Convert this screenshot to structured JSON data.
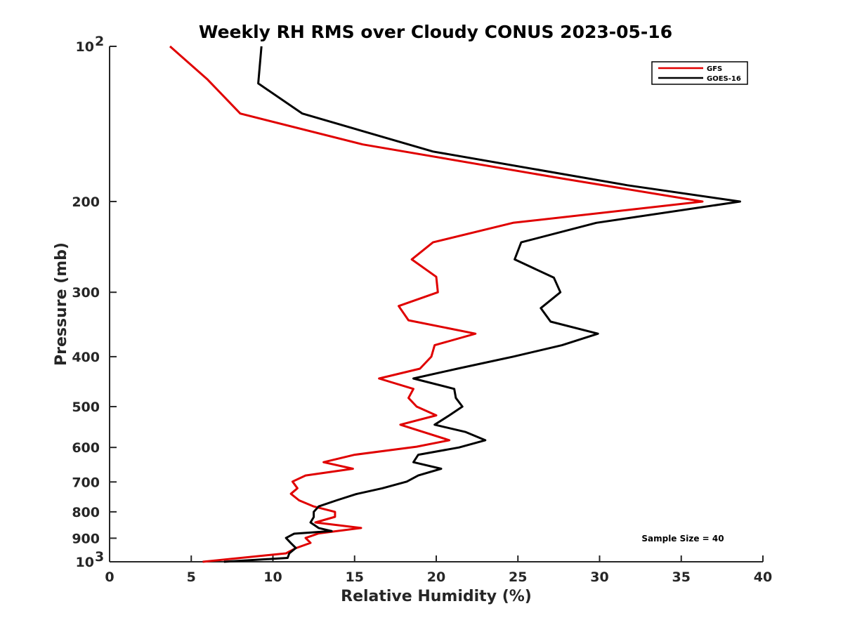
{
  "chart_data": {
    "type": "line",
    "title": "Weekly RH RMS over Cloudy CONUS 2023-05-16",
    "xlabel": "Relative Humidity (%)",
    "ylabel": "Pressure (mb)",
    "xlim": [
      0,
      40
    ],
    "ylim": [
      100,
      1000
    ],
    "y_scale": "log",
    "y_reversed": true,
    "x_ticks": [
      "0",
      "5",
      "10",
      "15",
      "20",
      "25",
      "30",
      "35",
      "40"
    ],
    "y_ticks": [
      {
        "value": 100,
        "base": "10",
        "exp": "2"
      },
      {
        "value": 200,
        "label": "200"
      },
      {
        "value": 300,
        "label": "300"
      },
      {
        "value": 400,
        "label": "400"
      },
      {
        "value": 500,
        "label": "500"
      },
      {
        "value": 600,
        "label": "600"
      },
      {
        "value": 700,
        "label": "700"
      },
      {
        "value": 800,
        "label": "800"
      },
      {
        "value": 900,
        "label": "900"
      },
      {
        "value": 1000,
        "base": "10",
        "exp": "3"
      }
    ],
    "legend_position": "top-right",
    "annotation": "Sample Size = 40",
    "series": [
      {
        "name": "GFS",
        "color": "#e00000",
        "points": [
          [
            3.7,
            100
          ],
          [
            6.0,
            116
          ],
          [
            8.0,
            135
          ],
          [
            15.5,
            155
          ],
          [
            27.5,
            180
          ],
          [
            36.3,
            200
          ],
          [
            24.7,
            220
          ],
          [
            19.8,
            240
          ],
          [
            18.5,
            259
          ],
          [
            20.0,
            280
          ],
          [
            20.1,
            300
          ],
          [
            17.7,
            319
          ],
          [
            18.3,
            340
          ],
          [
            22.4,
            361
          ],
          [
            19.9,
            380
          ],
          [
            19.7,
            400
          ],
          [
            19.0,
            422
          ],
          [
            16.5,
            441
          ],
          [
            18.6,
            462
          ],
          [
            18.3,
            481
          ],
          [
            18.8,
            500
          ],
          [
            20.0,
            520
          ],
          [
            17.8,
            542
          ],
          [
            20.8,
            581
          ],
          [
            18.8,
            598
          ],
          [
            15.0,
            620
          ],
          [
            13.1,
            641
          ],
          [
            14.9,
            660
          ],
          [
            12.0,
            680
          ],
          [
            11.2,
            699
          ],
          [
            11.5,
            720
          ],
          [
            11.1,
            738
          ],
          [
            11.6,
            760
          ],
          [
            12.5,
            781
          ],
          [
            13.8,
            800
          ],
          [
            13.8,
            818
          ],
          [
            12.6,
            839
          ],
          [
            15.4,
            860
          ],
          [
            12.8,
            881
          ],
          [
            12.0,
            899
          ],
          [
            12.3,
            919
          ],
          [
            11.4,
            941
          ],
          [
            10.8,
            963
          ],
          [
            5.7,
            1000
          ]
        ]
      },
      {
        "name": "GOES-16",
        "color": "#000000",
        "points": [
          [
            9.3,
            100
          ],
          [
            9.1,
            118
          ],
          [
            11.8,
            135
          ],
          [
            19.8,
            160
          ],
          [
            31.7,
            186
          ],
          [
            38.6,
            200
          ],
          [
            29.8,
            220
          ],
          [
            25.2,
            240
          ],
          [
            24.8,
            259
          ],
          [
            27.2,
            281
          ],
          [
            27.6,
            300
          ],
          [
            26.4,
            322
          ],
          [
            27.0,
            342
          ],
          [
            29.9,
            361
          ],
          [
            27.7,
            380
          ],
          [
            24.7,
            400
          ],
          [
            21.3,
            422
          ],
          [
            18.6,
            441
          ],
          [
            21.1,
            462
          ],
          [
            21.2,
            481
          ],
          [
            21.6,
            500
          ],
          [
            20.8,
            520
          ],
          [
            19.9,
            542
          ],
          [
            21.8,
            560
          ],
          [
            23.0,
            581
          ],
          [
            21.4,
            600
          ],
          [
            18.9,
            620
          ],
          [
            18.6,
            641
          ],
          [
            20.3,
            660
          ],
          [
            18.9,
            680
          ],
          [
            18.2,
            699
          ],
          [
            16.7,
            720
          ],
          [
            15.1,
            739
          ],
          [
            13.9,
            760
          ],
          [
            12.8,
            781
          ],
          [
            12.5,
            800
          ],
          [
            12.5,
            819
          ],
          [
            12.3,
            839
          ],
          [
            12.8,
            860
          ],
          [
            13.6,
            872
          ],
          [
            11.3,
            882
          ],
          [
            10.8,
            899
          ],
          [
            11.1,
            920
          ],
          [
            11.4,
            940
          ],
          [
            11.0,
            963
          ],
          [
            10.9,
            983
          ],
          [
            7.0,
            1000
          ]
        ]
      }
    ]
  }
}
